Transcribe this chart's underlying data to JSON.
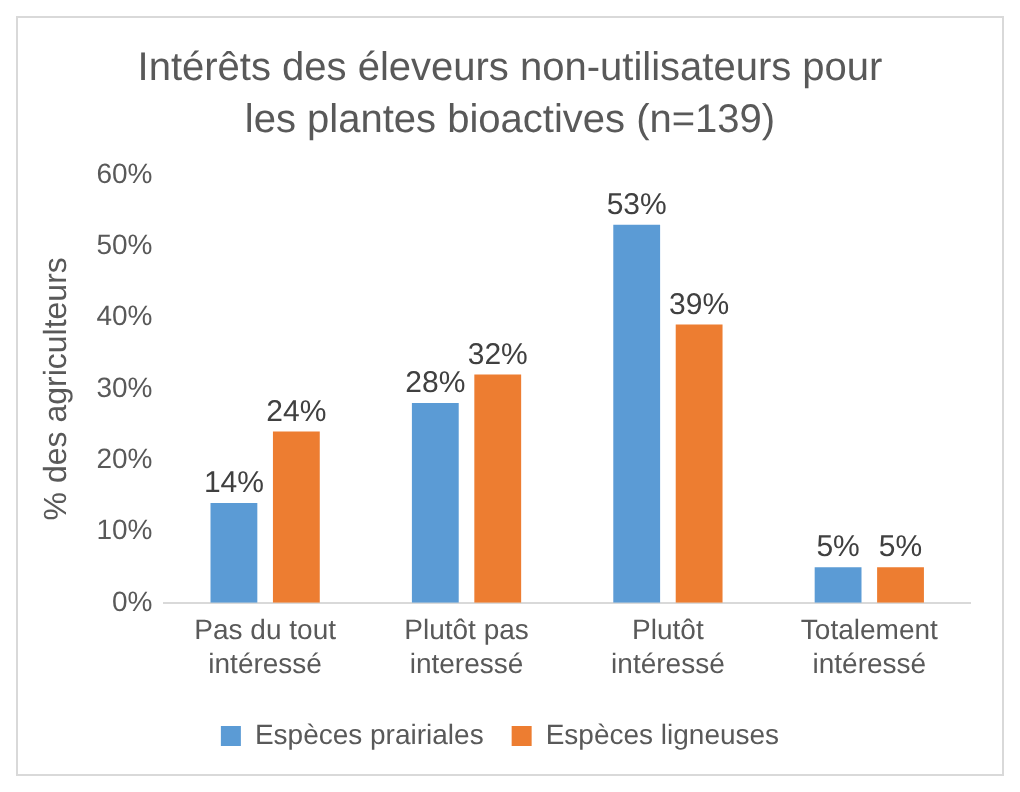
{
  "chart_data": {
    "type": "bar",
    "title": "Intérêts des éleveurs non-utilisateurs pour les plantes bioactives (n=139)",
    "ylabel": "% des agriculteurs",
    "categories": [
      "Pas du tout intéressé",
      "Plutôt pas interessé",
      "Plutôt intéressé",
      "Totalement intéressé"
    ],
    "series": [
      {
        "name": "Espèces prairiales",
        "color": "#5b9bd5",
        "values": [
          14,
          28,
          53,
          5
        ],
        "value_labels": [
          "14%",
          "28%",
          "53%",
          "5%"
        ]
      },
      {
        "name": "Espèces ligneuses",
        "color": "#ed7d31",
        "values": [
          24,
          32,
          39,
          5
        ],
        "value_labels": [
          "24%",
          "32%",
          "39%",
          "5%"
        ]
      }
    ],
    "ylim": [
      0,
      60
    ],
    "yticks": [
      {
        "value": 0,
        "label": "0%"
      },
      {
        "value": 10,
        "label": "10%"
      },
      {
        "value": 20,
        "label": "20%"
      },
      {
        "value": 30,
        "label": "30%"
      },
      {
        "value": 40,
        "label": "40%"
      },
      {
        "value": 50,
        "label": "50%"
      },
      {
        "value": 60,
        "label": "60%"
      }
    ],
    "legend": "bottom"
  }
}
